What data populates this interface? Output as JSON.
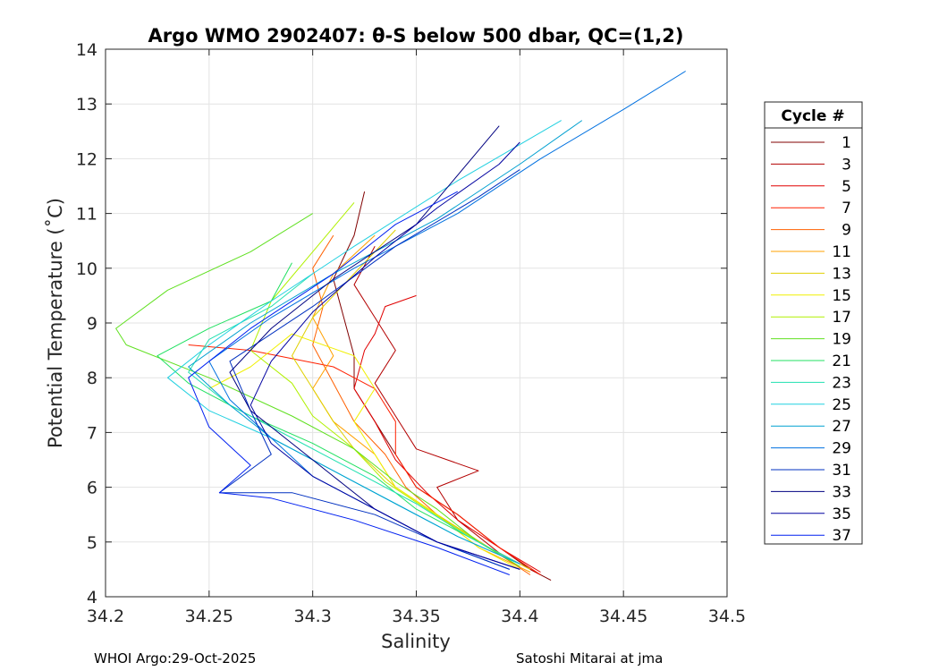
{
  "chart_data": {
    "type": "line",
    "title": "Argo WMO 2902407: θ-S below 500 dbar,  QC=(1,2)",
    "xlabel": "Salinity",
    "ylabel": "Potential Temperature (˚C)",
    "xlim": [
      34.2,
      34.5
    ],
    "ylim": [
      4,
      14
    ],
    "x_ticks": [
      "34.2",
      "34.25",
      "34.3",
      "34.35",
      "34.4",
      "34.45",
      "34.5"
    ],
    "y_ticks": [
      "4",
      "5",
      "6",
      "7",
      "8",
      "9",
      "10",
      "11",
      "12",
      "13",
      "14"
    ],
    "grid": true,
    "legend_title": "Cycle #",
    "legend_position": "outside-right",
    "legend": [
      "1",
      "3",
      "5",
      "7",
      "9",
      "11",
      "13",
      "15",
      "17",
      "19",
      "21",
      "23",
      "25",
      "27",
      "29",
      "31",
      "33",
      "35",
      "37"
    ],
    "series": [
      {
        "name": "1",
        "color": "#800000",
        "x": [
          34.415,
          34.405,
          34.39,
          34.37,
          34.35,
          34.34,
          34.33,
          34.32,
          34.32,
          34.315,
          34.31,
          34.32,
          34.325
        ],
        "y": [
          4.3,
          4.5,
          4.9,
          5.5,
          6.0,
          6.6,
          7.2,
          7.8,
          8.4,
          9.1,
          9.8,
          10.6,
          11.4
        ]
      },
      {
        "name": "3",
        "color": "#b30000",
        "x": [
          34.41,
          34.39,
          34.37,
          34.36,
          34.38,
          34.35,
          34.34,
          34.33,
          34.34,
          34.33,
          34.32,
          34.33
        ],
        "y": [
          4.4,
          4.8,
          5.4,
          6.0,
          6.3,
          6.7,
          7.3,
          7.9,
          8.5,
          9.1,
          9.7,
          10.4
        ]
      },
      {
        "name": "5",
        "color": "#e00000",
        "x": [
          34.41,
          34.39,
          34.37,
          34.355,
          34.34,
          34.33,
          34.32,
          34.325,
          34.33,
          34.335,
          34.35
        ],
        "y": [
          4.45,
          4.9,
          5.4,
          5.9,
          6.5,
          7.2,
          7.8,
          8.5,
          8.8,
          9.3,
          9.5
        ]
      },
      {
        "name": "7",
        "color": "#ff2000",
        "x": [
          34.41,
          34.39,
          34.37,
          34.35,
          34.34,
          34.34,
          34.33,
          34.31,
          34.27,
          34.24
        ],
        "y": [
          4.4,
          4.9,
          5.5,
          6.0,
          6.6,
          7.2,
          7.8,
          8.2,
          8.5,
          8.6
        ]
      },
      {
        "name": "9",
        "color": "#ff6000",
        "x": [
          34.405,
          34.385,
          34.36,
          34.345,
          34.335,
          34.32,
          34.31,
          34.3,
          34.305,
          34.3,
          34.31
        ],
        "y": [
          4.4,
          4.9,
          5.5,
          6.0,
          6.6,
          7.2,
          7.9,
          8.6,
          9.3,
          10.0,
          10.6
        ]
      },
      {
        "name": "11",
        "color": "#ffa000",
        "x": [
          34.405,
          34.38,
          34.36,
          34.34,
          34.33,
          34.31,
          34.3,
          34.31,
          34.3,
          34.31,
          34.33
        ],
        "y": [
          4.45,
          4.9,
          5.5,
          6.0,
          6.6,
          7.2,
          7.8,
          8.4,
          9.1,
          9.9,
          10.6
        ]
      },
      {
        "name": "13",
        "color": "#e0d000",
        "x": [
          34.405,
          34.385,
          34.36,
          34.34,
          34.32,
          34.31,
          34.3,
          34.29,
          34.3,
          34.32,
          34.34
        ],
        "y": [
          4.5,
          4.9,
          5.5,
          6.0,
          6.7,
          7.2,
          7.8,
          8.4,
          9.1,
          9.9,
          10.7
        ]
      },
      {
        "name": "15",
        "color": "#f0f000",
        "x": [
          34.4,
          34.38,
          34.36,
          34.34,
          34.33,
          34.32,
          34.33,
          34.32,
          34.29,
          34.27,
          34.25
        ],
        "y": [
          4.5,
          4.9,
          5.5,
          6.0,
          6.6,
          7.2,
          7.8,
          8.4,
          8.8,
          8.2,
          7.8
        ]
      },
      {
        "name": "17",
        "color": "#b0f000",
        "x": [
          34.4,
          34.38,
          34.355,
          34.335,
          34.32,
          34.3,
          34.29,
          34.27,
          34.28,
          34.3,
          34.32
        ],
        "y": [
          4.55,
          5.0,
          5.6,
          6.1,
          6.7,
          7.3,
          7.9,
          8.5,
          9.4,
          10.3,
          11.2
        ]
      },
      {
        "name": "19",
        "color": "#60e020",
        "x": [
          34.4,
          34.38,
          34.36,
          34.34,
          34.32,
          34.29,
          34.25,
          34.21,
          34.205,
          34.23,
          34.27,
          34.3
        ],
        "y": [
          4.55,
          5.0,
          5.6,
          6.1,
          6.7,
          7.3,
          8.0,
          8.6,
          8.9,
          9.6,
          10.3,
          11.0
        ]
      },
      {
        "name": "21",
        "color": "#20e060",
        "x": [
          34.4,
          34.38,
          34.35,
          34.33,
          34.3,
          34.27,
          34.24,
          34.225,
          34.25,
          34.28,
          34.29
        ],
        "y": [
          4.6,
          5.0,
          5.6,
          6.2,
          6.8,
          7.3,
          7.9,
          8.4,
          8.9,
          9.4,
          10.1
        ]
      },
      {
        "name": "23",
        "color": "#20e0b0",
        "x": [
          34.4,
          34.375,
          34.35,
          34.32,
          34.29,
          34.26,
          34.24,
          34.25,
          34.28,
          34.3
        ],
        "y": [
          4.6,
          5.1,
          5.7,
          6.3,
          6.9,
          7.5,
          8.1,
          8.7,
          9.3,
          9.9
        ]
      },
      {
        "name": "25",
        "color": "#20d0e0",
        "x": [
          34.4,
          34.37,
          34.34,
          34.31,
          34.28,
          34.25,
          34.23,
          34.25,
          34.28,
          34.32,
          34.37,
          34.42
        ],
        "y": [
          4.6,
          5.1,
          5.7,
          6.3,
          6.9,
          7.4,
          8.0,
          8.6,
          9.4,
          10.4,
          11.6,
          12.7
        ]
      },
      {
        "name": "27",
        "color": "#00a0d0",
        "x": [
          34.4,
          34.37,
          34.34,
          34.31,
          34.28,
          34.26,
          34.24,
          34.27,
          34.31,
          34.36,
          34.4,
          34.43
        ],
        "y": [
          4.6,
          5.1,
          5.7,
          6.3,
          6.9,
          7.5,
          8.2,
          9.0,
          9.9,
          10.9,
          11.9,
          12.7
        ]
      },
      {
        "name": "29",
        "color": "#0070e0",
        "x": [
          34.395,
          34.36,
          34.33,
          34.3,
          34.28,
          34.26,
          34.25,
          34.28,
          34.32,
          34.37,
          34.41,
          34.45,
          34.48
        ],
        "y": [
          4.5,
          5.0,
          5.6,
          6.2,
          6.9,
          7.6,
          8.3,
          9.1,
          10.0,
          11.0,
          12.0,
          12.9,
          13.6
        ]
      },
      {
        "name": "31",
        "color": "#0030c0",
        "x": [
          34.395,
          34.36,
          34.33,
          34.29,
          34.255,
          34.28,
          34.27,
          34.26,
          34.3,
          34.34,
          34.38,
          34.4
        ],
        "y": [
          4.5,
          5.0,
          5.5,
          5.9,
          5.9,
          6.6,
          7.4,
          8.3,
          9.3,
          10.4,
          11.3,
          11.8
        ]
      },
      {
        "name": "33",
        "color": "#000080",
        "x": [
          34.4,
          34.36,
          34.33,
          34.31,
          34.29,
          34.27,
          34.26,
          34.28,
          34.31,
          34.35,
          34.37,
          34.39
        ],
        "y": [
          4.5,
          5.0,
          5.6,
          6.2,
          6.8,
          7.4,
          8.1,
          8.9,
          9.8,
          10.8,
          11.7,
          12.6
        ]
      },
      {
        "name": "35",
        "color": "#0000a0",
        "x": [
          34.4,
          34.36,
          34.33,
          34.3,
          34.28,
          34.27,
          34.28,
          34.3,
          34.33,
          34.36,
          34.39,
          34.4
        ],
        "y": [
          4.5,
          5.0,
          5.6,
          6.2,
          6.8,
          7.5,
          8.3,
          9.2,
          10.2,
          11.1,
          11.9,
          12.3
        ]
      },
      {
        "name": "37",
        "color": "#0020f0",
        "x": [
          34.395,
          34.36,
          34.32,
          34.28,
          34.255,
          34.27,
          34.25,
          34.24,
          34.27,
          34.31,
          34.34,
          34.37
        ],
        "y": [
          4.4,
          4.9,
          5.4,
          5.8,
          5.9,
          6.4,
          7.1,
          8.0,
          8.9,
          9.9,
          10.8,
          11.4
        ]
      }
    ]
  },
  "footer": {
    "left": "WHOI Argo:29-Oct-2025",
    "right": "Satoshi Mitarai at jma"
  }
}
